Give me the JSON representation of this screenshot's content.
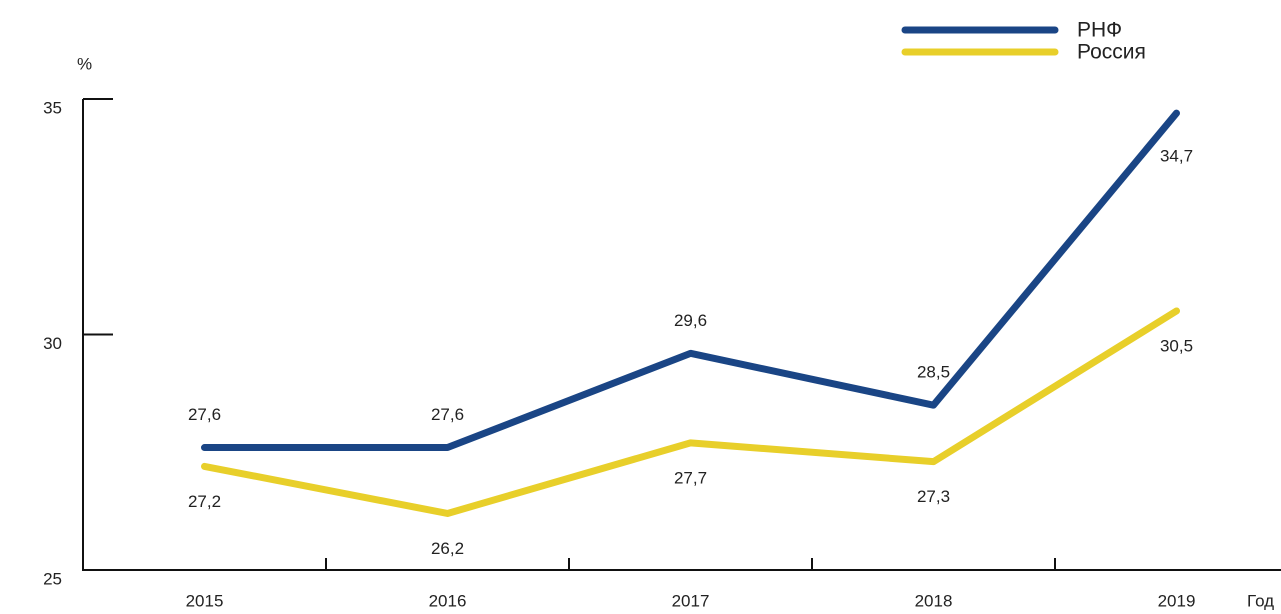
{
  "chart_data": {
    "type": "line",
    "y_label": "%",
    "x_label": "Год",
    "categories": [
      "2015",
      "2016",
      "2017",
      "2018",
      "2019"
    ],
    "series": [
      {
        "name": "РНФ",
        "color": "#1a4585",
        "values": [
          27.6,
          27.6,
          29.6,
          28.5,
          34.7
        ],
        "value_labels": [
          "27,6",
          "27,6",
          "29,6",
          "28,5",
          "34,7"
        ]
      },
      {
        "name": "Россия",
        "color": "#e8cf2a",
        "values": [
          27.2,
          26.2,
          27.7,
          27.3,
          30.5
        ],
        "value_labels": [
          "27,2",
          "26,2",
          "27,7",
          "27,3",
          "30,5"
        ]
      }
    ],
    "ylim": [
      25,
      35
    ],
    "yticks": [
      25,
      30,
      35
    ],
    "legend": "upper right"
  }
}
